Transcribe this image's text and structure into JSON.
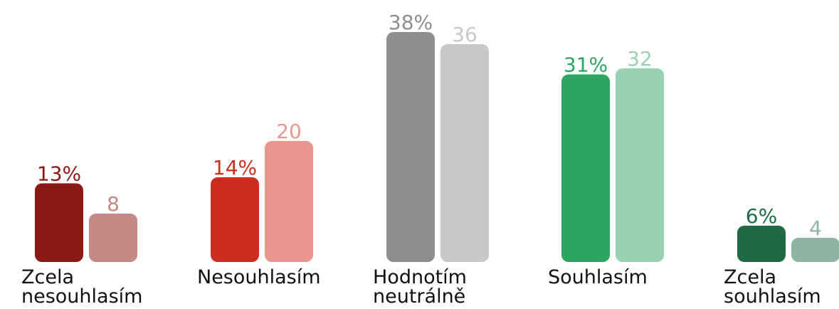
{
  "chart_data": {
    "type": "bar",
    "categories": [
      [
        "Zcela",
        "nesouhlasím"
      ],
      [
        "Nesouhlasím"
      ],
      [
        "Hodnotím",
        "neutrálně"
      ],
      [
        "Souhlasím"
      ],
      [
        "Zcela",
        "souhlasím"
      ]
    ],
    "series": [
      {
        "values": [
          13,
          14,
          38,
          31,
          6
        ],
        "labels": [
          "13%",
          "14%",
          "38%",
          "31%",
          "6%"
        ],
        "colors": [
          "#8b1a14",
          "#cc2e1e",
          "#8e8e8e",
          "#2fa564",
          "#1f6a43"
        ]
      },
      {
        "values": [
          8,
          20,
          36,
          32,
          4
        ],
        "labels": [
          "8",
          "20",
          "36",
          "32",
          "4"
        ],
        "colors": [
          "#c48a86",
          "#e8968e",
          "#c8c8c8",
          "#98d1af",
          "#8fb5a2"
        ]
      }
    ],
    "label_colors": [
      [
        "#8b1a14",
        "#cc2e1e",
        "#8e8e8e",
        "#2fa564",
        "#1f6a43"
      ],
      [
        "#c48a86",
        "#e8968e",
        "#c8c8c8",
        "#98d1af",
        "#8fb5a2"
      ]
    ],
    "ylim": [
      0,
      38
    ],
    "grid": false,
    "legend": "none"
  }
}
